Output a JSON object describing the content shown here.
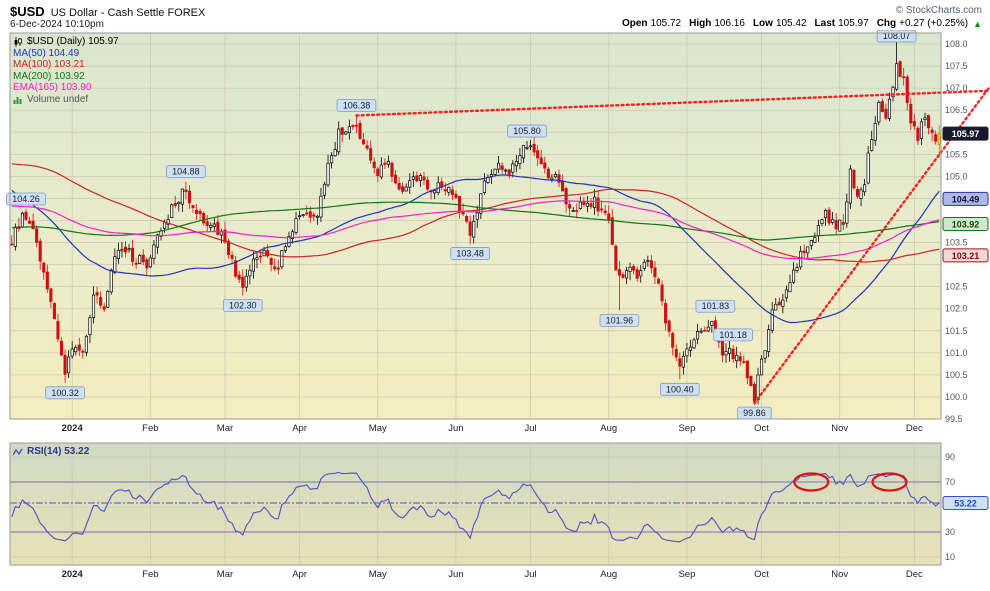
{
  "header": {
    "symbol": "$USD",
    "title": "US Dollar - Cash Settle FOREX",
    "copyright": "© StockCharts.com",
    "datetime": "6-Dec-2024 10:10pm",
    "quote": {
      "open_label": "Open",
      "open_value": "105.72",
      "high_label": "High",
      "high_value": "106.16",
      "low_label": "Low",
      "low_value": "105.42",
      "last_label": "Last",
      "last_value": "105.97",
      "chg_label": "Chg",
      "chg_value": "+0.27 (+0.25%)",
      "up_icon": "▲"
    }
  },
  "legend": {
    "main": "$USD (Daily) 105.97",
    "ma50": "MA(50) 104.49",
    "ma100": "MA(100) 103.21",
    "ma200": "MA(200) 103.92",
    "ema165": "EMA(165) 103.90",
    "volume": "Volume undef",
    "rsi": "RSI(14) 53.22"
  },
  "colors": {
    "bg_top": "#d9e6cf",
    "bg_mid": "#eaeccb",
    "bg_bottom": "#f4edbe",
    "rsi_bg_top": "#cfdac4",
    "rsi_bg_bottom": "#e9e1b6",
    "grid": "#ccc8b0",
    "panel_border": "#999999",
    "candle_up": "#000000",
    "candle_up_fill": "#ffffff",
    "candle_down": "#cc1111",
    "candle_last": "#ffd400",
    "candle_last_wick": "#b08f00",
    "ma50": "#2233bb",
    "ma100": "#cc2222",
    "ma200": "#117711",
    "ema165": "#ee22cc",
    "trendline": "#ee1111",
    "annot_bg": "#cfe0f2",
    "annot_border": "#7a9cc8",
    "rsi_line": "#5050c8",
    "rsi_ref": "#7a6fbf",
    "highlight": "#dd1111",
    "change_up": "#009900",
    "axis_text": "#555555"
  },
  "chart_data": [
    {
      "type": "candlestick",
      "title": "$USD (Daily) 105.97",
      "ylim": [
        99.5,
        108.25
      ],
      "y_tick_step": 0.5,
      "y_tick_min": 100.0,
      "y_tick_max": 108.0,
      "bars_total": 262,
      "month_ticks": [
        {
          "bar": 17,
          "label": "2024"
        },
        {
          "bar": 39,
          "label": "Feb"
        },
        {
          "bar": 60,
          "label": "Mar"
        },
        {
          "bar": 81,
          "label": "Apr"
        },
        {
          "bar": 103,
          "label": "May"
        },
        {
          "bar": 125,
          "label": "Jun"
        },
        {
          "bar": 146,
          "label": "Jul"
        },
        {
          "bar": 168,
          "label": "Aug"
        },
        {
          "bar": 190,
          "label": "Sep"
        },
        {
          "bar": 211,
          "label": "Oct"
        },
        {
          "bar": 233,
          "label": "Nov"
        },
        {
          "bar": 254,
          "label": "Dec"
        }
      ],
      "last_bar_ohlc": {
        "open": 105.72,
        "high": 106.16,
        "low": 105.42,
        "close": 105.97
      },
      "overlays": [
        {
          "name": "MA(50)",
          "kind": "sma",
          "period": 50,
          "value": 104.49,
          "color": "#2233bb"
        },
        {
          "name": "MA(100)",
          "kind": "sma",
          "period": 100,
          "value": 103.21,
          "color": "#cc2222"
        },
        {
          "name": "MA(200)",
          "kind": "sma",
          "period": 200,
          "value": 103.92,
          "color": "#117711"
        },
        {
          "name": "EMA(165)",
          "kind": "ema",
          "period": 165,
          "value": 103.9,
          "color": "#ee22cc"
        }
      ],
      "axis_badges": [
        {
          "text": "105.97",
          "price": 105.97,
          "bg": "#1a1a2e",
          "border": "#1a1a2e",
          "color": "#ffffff"
        },
        {
          "text": "104.49",
          "price": 104.49,
          "bg": "#aeb9e8",
          "border": "#2233aa",
          "color": "#111133"
        },
        {
          "text": "103.92",
          "price": 103.92,
          "bg": "#cfe6cf",
          "border": "#117711",
          "color": "#0a4a0a"
        },
        {
          "text": "103.21",
          "price": 103.21,
          "bg": "#f2d7d7",
          "border": "#aa1111",
          "color": "#7a0a0a"
        }
      ],
      "annotations": [
        {
          "text": "104.26",
          "bar": 4,
          "price": 104.26,
          "pos": "above"
        },
        {
          "text": "100.32",
          "bar": 15,
          "price": 100.32,
          "pos": "below"
        },
        {
          "text": "104.88",
          "bar": 49,
          "price": 104.88,
          "pos": "above"
        },
        {
          "text": "102.30",
          "bar": 65,
          "price": 102.3,
          "pos": "below"
        },
        {
          "text": "106.38",
          "bar": 97,
          "price": 106.38,
          "pos": "above"
        },
        {
          "text": "103.48",
          "bar": 129,
          "price": 103.48,
          "pos": "below"
        },
        {
          "text": "105.80",
          "bar": 145,
          "price": 105.8,
          "pos": "above"
        },
        {
          "text": "101.96",
          "bar": 171,
          "price": 101.96,
          "pos": "below"
        },
        {
          "text": "100.40",
          "bar": 188,
          "price": 100.4,
          "pos": "below"
        },
        {
          "text": "101.83",
          "bar": 198,
          "price": 101.83,
          "pos": "above"
        },
        {
          "text": "101.18",
          "bar": 203,
          "price": 101.18,
          "pos": "above"
        },
        {
          "text": "99.86",
          "bar": 209,
          "price": 99.86,
          "pos": "below"
        },
        {
          "text": "108.07",
          "bar": 249,
          "price": 108.07,
          "pos": "above"
        }
      ],
      "trendlines": [
        {
          "p1": [
            97,
            106.38
          ],
          "p2": [
            262,
            106.9
          ]
        },
        {
          "p1": [
            209,
            99.86
          ],
          "p2": [
            262,
            105.6
          ]
        }
      ],
      "price_anchors": [
        [
          0,
          103.6
        ],
        [
          3,
          104.15
        ],
        [
          6,
          103.7
        ],
        [
          9,
          102.9
        ],
        [
          12,
          101.6
        ],
        [
          15,
          100.55
        ],
        [
          17,
          101.2
        ],
        [
          20,
          101.0
        ],
        [
          23,
          102.2
        ],
        [
          26,
          102.0
        ],
        [
          29,
          103.3
        ],
        [
          32,
          103.45
        ],
        [
          35,
          103.0
        ],
        [
          38,
          103.1
        ],
        [
          41,
          103.5
        ],
        [
          44,
          104.1
        ],
        [
          48,
          104.75
        ],
        [
          51,
          104.3
        ],
        [
          54,
          103.95
        ],
        [
          57,
          103.9
        ],
        [
          60,
          103.45
        ],
        [
          63,
          102.8
        ],
        [
          65,
          102.45
        ],
        [
          68,
          103.0
        ],
        [
          71,
          103.4
        ],
        [
          74,
          102.9
        ],
        [
          77,
          103.35
        ],
        [
          80,
          104.0
        ],
        [
          83,
          104.3
        ],
        [
          86,
          104.1
        ],
        [
          89,
          105.25
        ],
        [
          92,
          105.9
        ],
        [
          95,
          106.15
        ],
        [
          97,
          106.1
        ],
        [
          99,
          105.65
        ],
        [
          101,
          105.4
        ],
        [
          103,
          105.1
        ],
        [
          106,
          105.2
        ],
        [
          109,
          104.6
        ],
        [
          112,
          104.9
        ],
        [
          115,
          105.1
        ],
        [
          118,
          104.6
        ],
        [
          121,
          104.85
        ],
        [
          124,
          104.6
        ],
        [
          127,
          104.15
        ],
        [
          129,
          103.65
        ],
        [
          131,
          104.3
        ],
        [
          133,
          104.9
        ],
        [
          135,
          105.1
        ],
        [
          137,
          105.25
        ],
        [
          139,
          105.05
        ],
        [
          142,
          105.4
        ],
        [
          145,
          105.75
        ],
        [
          147,
          105.6
        ],
        [
          150,
          105.1
        ],
        [
          153,
          104.9
        ],
        [
          156,
          104.4
        ],
        [
          159,
          104.2
        ],
        [
          162,
          104.45
        ],
        [
          165,
          104.3
        ],
        [
          168,
          104.1
        ],
        [
          170,
          102.9
        ],
        [
          172,
          102.6
        ],
        [
          174,
          103.0
        ],
        [
          176,
          102.8
        ],
        [
          179,
          103.15
        ],
        [
          182,
          102.5
        ],
        [
          185,
          101.4
        ],
        [
          188,
          100.7
        ],
        [
          190,
          101.1
        ],
        [
          193,
          101.4
        ],
        [
          196,
          101.6
        ],
        [
          198,
          101.6
        ],
        [
          200,
          100.95
        ],
        [
          203,
          101.0
        ],
        [
          206,
          100.7
        ],
        [
          209,
          100.05
        ],
        [
          211,
          100.75
        ],
        [
          214,
          101.9
        ],
        [
          217,
          102.35
        ],
        [
          220,
          102.8
        ],
        [
          223,
          103.3
        ],
        [
          226,
          103.7
        ],
        [
          229,
          104.05
        ],
        [
          232,
          103.9
        ],
        [
          234,
          103.95
        ],
        [
          236,
          105.05
        ],
        [
          238,
          104.5
        ],
        [
          240,
          104.9
        ],
        [
          242,
          105.9
        ],
        [
          244,
          106.5
        ],
        [
          246,
          106.35
        ],
        [
          248,
          107.0
        ],
        [
          249,
          107.5
        ],
        [
          251,
          107.2
        ],
        [
          253,
          106.3
        ],
        [
          255,
          105.8
        ],
        [
          257,
          106.35
        ],
        [
          259,
          105.95
        ],
        [
          261,
          105.97
        ]
      ],
      "history_anchors": [
        [
          -250,
          103.9
        ],
        [
          -230,
          102.6
        ],
        [
          -210,
          101.8
        ],
        [
          -195,
          103.4
        ],
        [
          -185,
          104.1
        ],
        [
          -170,
          102.9
        ],
        [
          -155,
          100.0
        ],
        [
          -145,
          99.9
        ],
        [
          -130,
          101.9
        ],
        [
          -115,
          103.3
        ],
        [
          -100,
          104.6
        ],
        [
          -85,
          105.3
        ],
        [
          -65,
          106.6
        ],
        [
          -50,
          106.9
        ],
        [
          -40,
          106.2
        ],
        [
          -30,
          105.0
        ],
        [
          -20,
          103.9
        ],
        [
          -10,
          103.5
        ],
        [
          -3,
          103.4
        ]
      ]
    },
    {
      "type": "line",
      "title": "RSI(14)",
      "period": 14,
      "value": 53.22,
      "ylim": [
        0,
        100
      ],
      "y_ticks": [
        90,
        70,
        50,
        30,
        10
      ],
      "ref_lines": [
        70,
        30
      ],
      "current_line": 53.22,
      "highlight_ellipses": [
        {
          "bar": 225,
          "level": 70
        },
        {
          "bar": 247,
          "level": 70
        }
      ]
    }
  ]
}
